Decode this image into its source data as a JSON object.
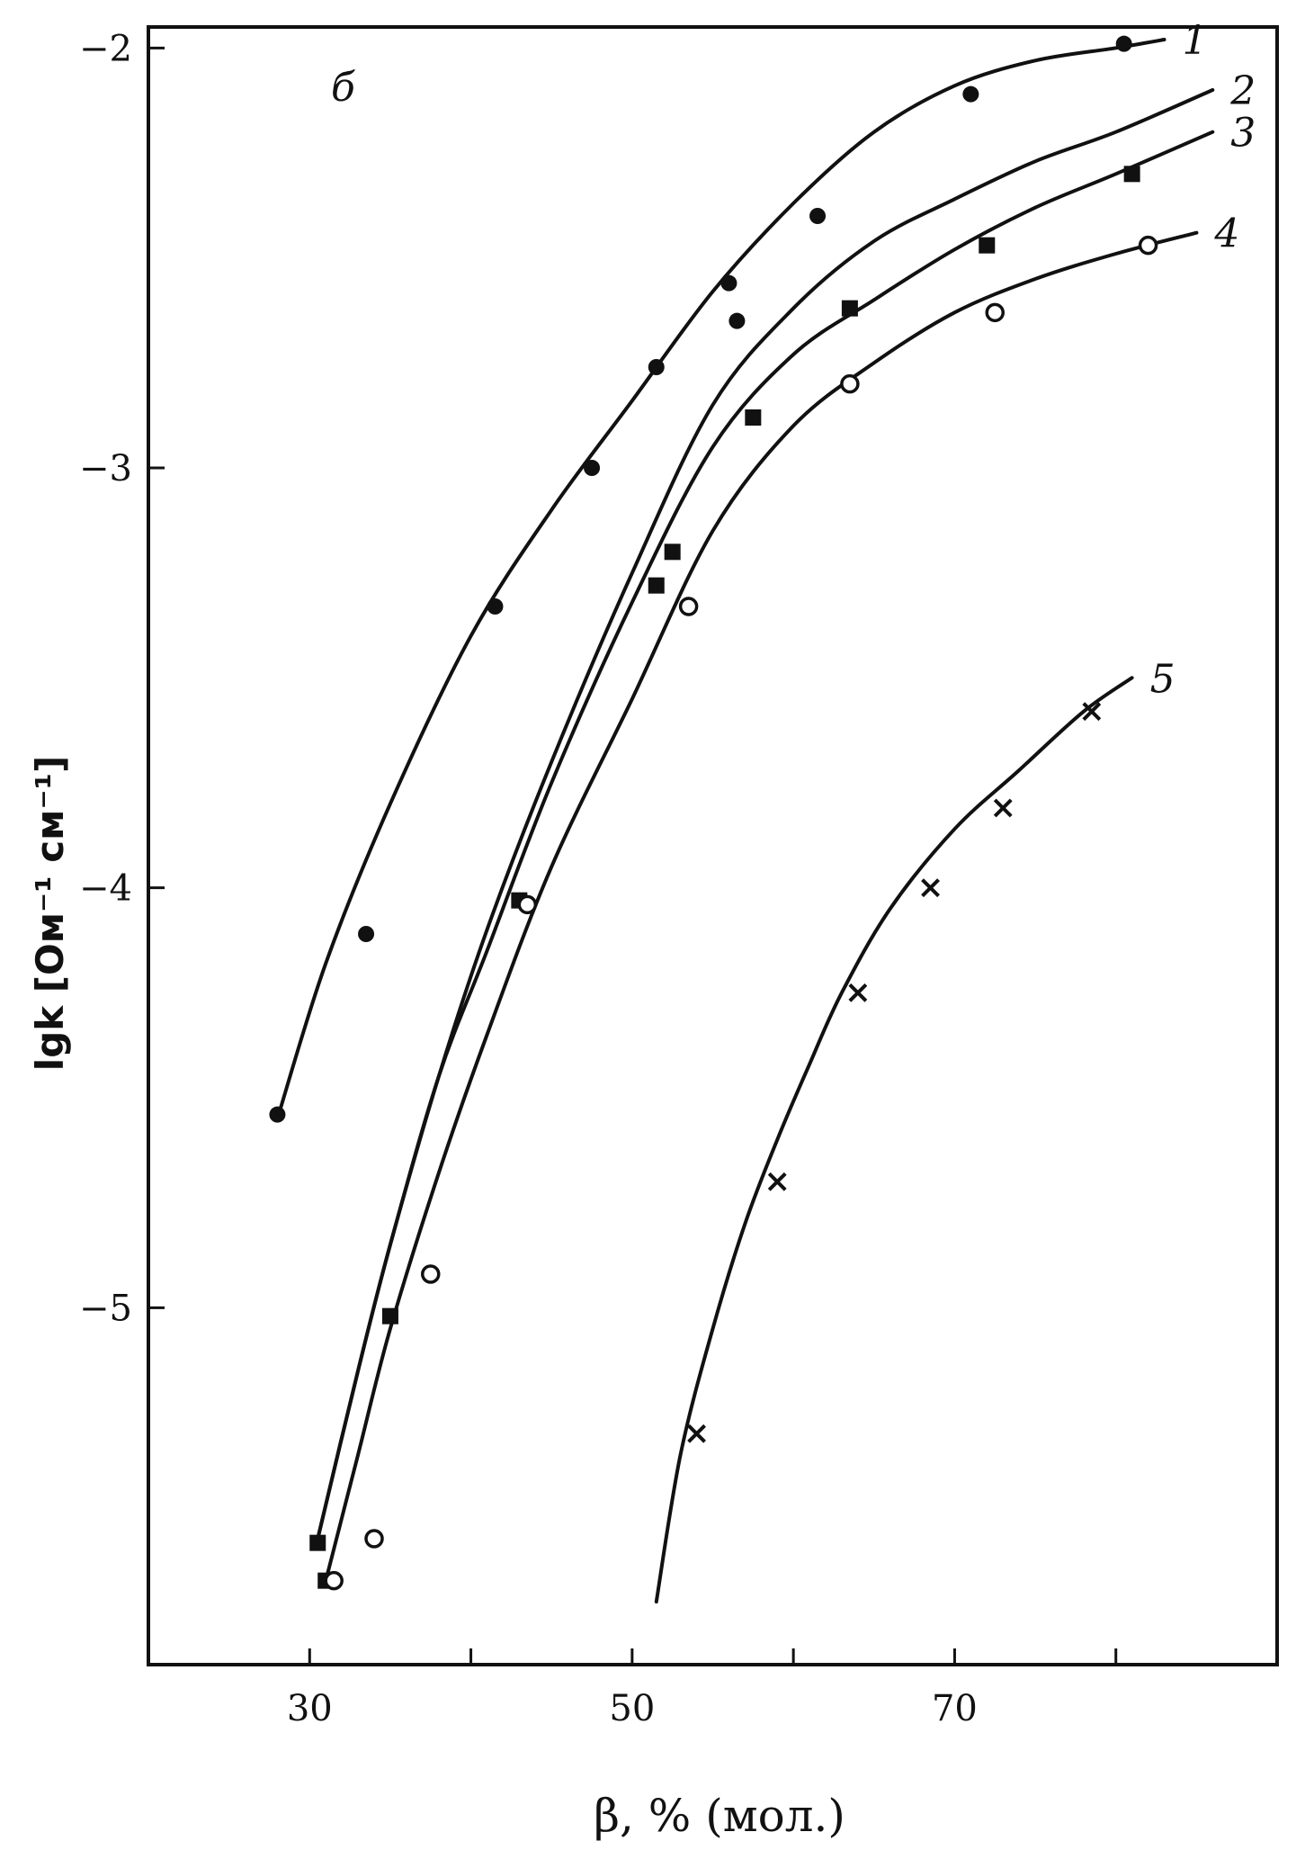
{
  "chart_data": {
    "type": "line",
    "panel_label": "б",
    "xlabel": "β, % (мол.)",
    "ylabel": "lgk [Ом⁻¹ см⁻¹]",
    "xlim": [
      20,
      90
    ],
    "ylim": [
      -5.85,
      -1.95
    ],
    "x_ticks": [
      30,
      50,
      70
    ],
    "x_minor_ticks": [
      40,
      60,
      80
    ],
    "y_ticks": [
      -2,
      -3,
      -4,
      -5
    ],
    "x_tick_labels": [
      "30",
      "50",
      "70"
    ],
    "y_tick_labels": [
      "−2",
      "−3",
      "−4",
      "−5"
    ],
    "grid": false,
    "colors": {
      "ink": "#111111",
      "background": "#ffffff"
    },
    "series": [
      {
        "name": "1",
        "marker": "filled-circle",
        "curve": [
          [
            28.0,
            -4.55
          ],
          [
            31,
            -4.18
          ],
          [
            35,
            -3.8
          ],
          [
            40,
            -3.4
          ],
          [
            45,
            -3.1
          ],
          [
            50,
            -2.84
          ],
          [
            55,
            -2.58
          ],
          [
            60,
            -2.37
          ],
          [
            65,
            -2.2
          ],
          [
            70,
            -2.09
          ],
          [
            75,
            -2.03
          ],
          [
            80,
            -2.0
          ],
          [
            83,
            -1.98
          ]
        ],
        "points": [
          [
            28.0,
            -4.54
          ],
          [
            33.5,
            -4.11
          ],
          [
            41.5,
            -3.33
          ],
          [
            47.5,
            -3.0
          ],
          [
            51.5,
            -2.76
          ],
          [
            56.0,
            -2.56
          ],
          [
            56.5,
            -2.65
          ],
          [
            61.5,
            -2.4
          ],
          [
            71.0,
            -2.11
          ],
          [
            80.5,
            -1.99
          ]
        ]
      },
      {
        "name": "2",
        "marker": "none",
        "curve": [
          [
            30.5,
            -5.55
          ],
          [
            33,
            -5.15
          ],
          [
            35,
            -4.85
          ],
          [
            38,
            -4.45
          ],
          [
            41,
            -4.1
          ],
          [
            45,
            -3.7
          ],
          [
            50,
            -3.25
          ],
          [
            55,
            -2.85
          ],
          [
            60,
            -2.62
          ],
          [
            65,
            -2.46
          ],
          [
            70,
            -2.36
          ],
          [
            75,
            -2.27
          ],
          [
            80,
            -2.2
          ],
          [
            86,
            -2.1
          ]
        ],
        "points": []
      },
      {
        "name": "3",
        "marker": "filled-square",
        "curve": [
          [
            30.5,
            -5.55
          ],
          [
            33,
            -5.15
          ],
          [
            35,
            -4.85
          ],
          [
            38,
            -4.45
          ],
          [
            41,
            -4.15
          ],
          [
            45,
            -3.75
          ],
          [
            50,
            -3.32
          ],
          [
            55,
            -2.95
          ],
          [
            60,
            -2.73
          ],
          [
            65,
            -2.6
          ],
          [
            70,
            -2.48
          ],
          [
            75,
            -2.38
          ],
          [
            80,
            -2.3
          ],
          [
            86,
            -2.2
          ]
        ],
        "points": [
          [
            30.5,
            -5.56
          ],
          [
            31.0,
            -5.65
          ],
          [
            35.0,
            -5.02
          ],
          [
            43.0,
            -4.03
          ],
          [
            51.5,
            -3.28
          ],
          [
            52.5,
            -3.2
          ],
          [
            57.5,
            -2.88
          ],
          [
            63.5,
            -2.62
          ],
          [
            72.0,
            -2.47
          ],
          [
            81.0,
            -2.3
          ]
        ]
      },
      {
        "name": "4",
        "marker": "open-circle",
        "curve": [
          [
            31.0,
            -5.65
          ],
          [
            33,
            -5.35
          ],
          [
            35,
            -5.05
          ],
          [
            38,
            -4.68
          ],
          [
            41,
            -4.35
          ],
          [
            45,
            -3.95
          ],
          [
            50,
            -3.55
          ],
          [
            55,
            -3.15
          ],
          [
            60,
            -2.9
          ],
          [
            65,
            -2.75
          ],
          [
            70,
            -2.63
          ],
          [
            75,
            -2.55
          ],
          [
            80,
            -2.49
          ],
          [
            85,
            -2.44
          ]
        ],
        "points": [
          [
            31.5,
            -5.65
          ],
          [
            34.0,
            -5.55
          ],
          [
            37.5,
            -4.92
          ],
          [
            43.5,
            -4.04
          ],
          [
            53.5,
            -3.33
          ],
          [
            63.5,
            -2.8
          ],
          [
            72.5,
            -2.63
          ],
          [
            82.0,
            -2.47
          ]
        ]
      },
      {
        "name": "5",
        "marker": "cross",
        "curve": [
          [
            51.5,
            -5.7
          ],
          [
            53,
            -5.35
          ],
          [
            55,
            -5.05
          ],
          [
            57,
            -4.8
          ],
          [
            59,
            -4.6
          ],
          [
            61,
            -4.42
          ],
          [
            63,
            -4.25
          ],
          [
            66,
            -4.05
          ],
          [
            70,
            -3.86
          ],
          [
            74,
            -3.72
          ],
          [
            78,
            -3.58
          ],
          [
            81,
            -3.5
          ]
        ],
        "points": [
          [
            54.0,
            -5.3
          ],
          [
            59.0,
            -4.7
          ],
          [
            64.0,
            -4.25
          ],
          [
            68.5,
            -4.0
          ],
          [
            73.0,
            -3.81
          ],
          [
            78.5,
            -3.58
          ]
        ]
      }
    ]
  }
}
